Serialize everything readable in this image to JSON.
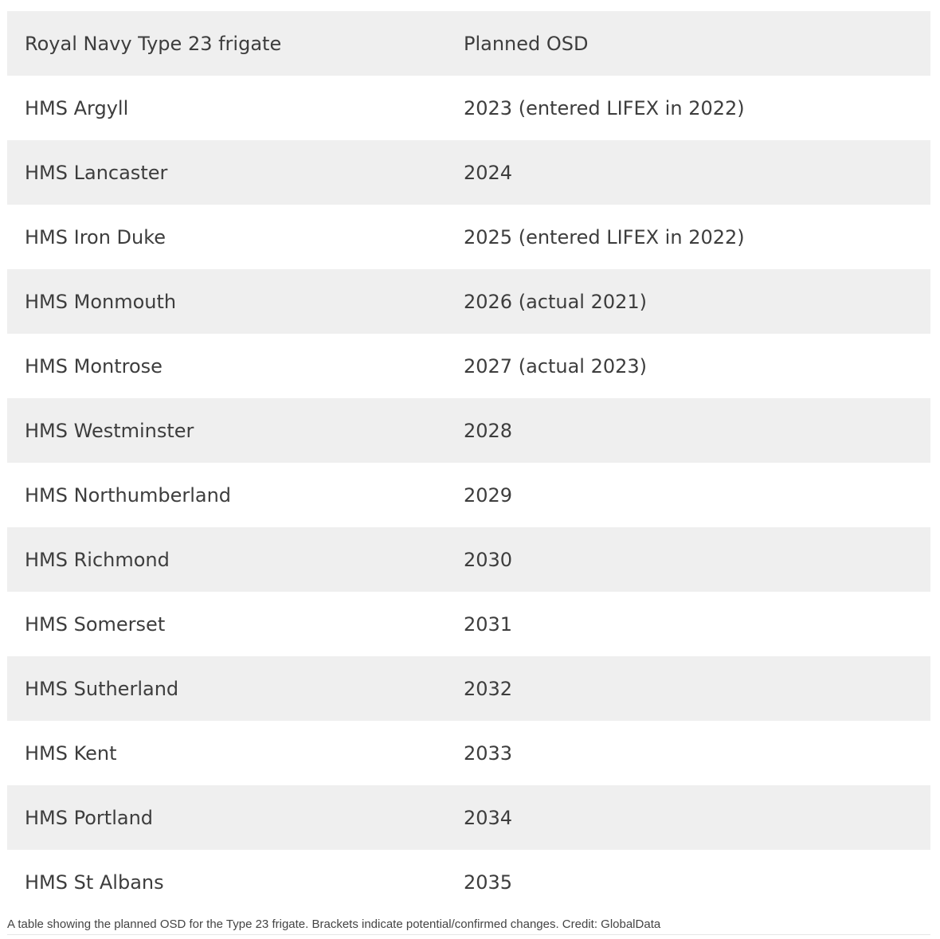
{
  "table": {
    "header": {
      "col1": "Royal Navy Type 23 frigate",
      "col2": "Planned OSD"
    },
    "rows": [
      {
        "ship": "HMS Argyll",
        "osd": "2023 (entered LIFEX in 2022)"
      },
      {
        "ship": "HMS Lancaster",
        "osd": "2024"
      },
      {
        "ship": "HMS Iron Duke",
        "osd": "2025 (entered LIFEX in 2022)"
      },
      {
        "ship": "HMS Monmouth",
        "osd": "2026 (actual 2021)"
      },
      {
        "ship": "HMS Montrose",
        "osd": "2027 (actual 2023)"
      },
      {
        "ship": "HMS Westminster",
        "osd": "2028"
      },
      {
        "ship": "HMS Northumberland",
        "osd": "2029"
      },
      {
        "ship": "HMS Richmond",
        "osd": "2030"
      },
      {
        "ship": "HMS Somerset",
        "osd": "2031"
      },
      {
        "ship": "HMS Sutherland",
        "osd": "2032"
      },
      {
        "ship": "HMS Kent",
        "osd": "2033"
      },
      {
        "ship": "HMS Portland",
        "osd": "2034"
      },
      {
        "ship": "HMS St Albans",
        "osd": "2035"
      }
    ]
  },
  "caption": "A table showing the planned OSD for the Type 23 frigate. Brackets indicate potential/confirmed changes. Credit: GlobalData",
  "colors": {
    "stripe": "#efefef",
    "text": "#3d3d3d"
  }
}
